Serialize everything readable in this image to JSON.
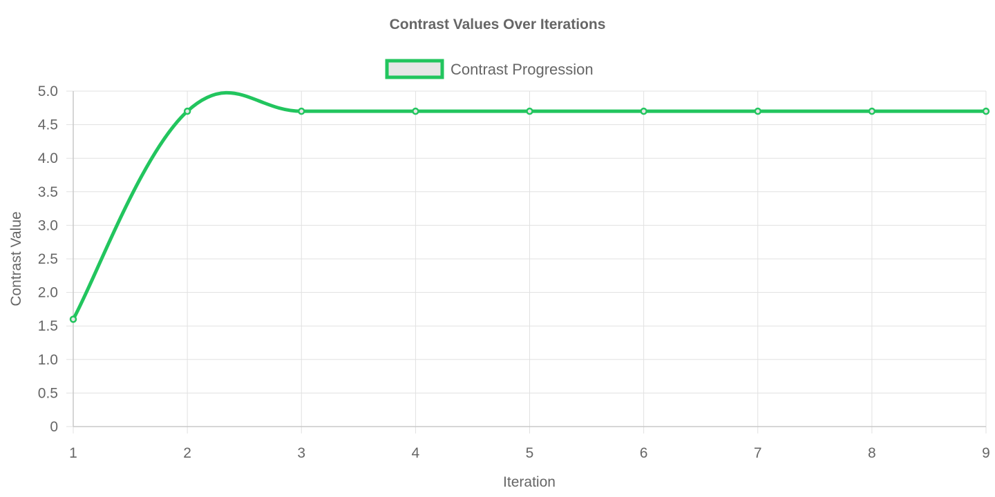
{
  "chart_data": {
    "type": "line",
    "title": "Contrast Values Over Iterations",
    "xlabel": "Iteration",
    "ylabel": "Contrast Value",
    "x": [
      1,
      2,
      3,
      4,
      5,
      6,
      7,
      8,
      9
    ],
    "x_tick_labels": [
      "1",
      "2",
      "3",
      "4",
      "5",
      "6",
      "7",
      "8",
      "9"
    ],
    "y_ticks": [
      0,
      0.5,
      1.0,
      1.5,
      2.0,
      2.5,
      3.0,
      3.5,
      4.0,
      4.5,
      5.0
    ],
    "y_tick_labels": [
      "0",
      "0.5",
      "1.0",
      "1.5",
      "2.0",
      "2.5",
      "3.0",
      "3.5",
      "4.0",
      "4.5",
      "5.0"
    ],
    "xlim": [
      1,
      9
    ],
    "ylim": [
      0,
      5
    ],
    "grid": true,
    "legend_position": "top-center",
    "series": [
      {
        "name": "Contrast Progression",
        "values": [
          1.6,
          4.7,
          4.7,
          4.7,
          4.7,
          4.7,
          4.7,
          4.7,
          4.7
        ],
        "color": "#22c55e",
        "fill": "#e6e6e6",
        "smooth": true
      }
    ]
  }
}
